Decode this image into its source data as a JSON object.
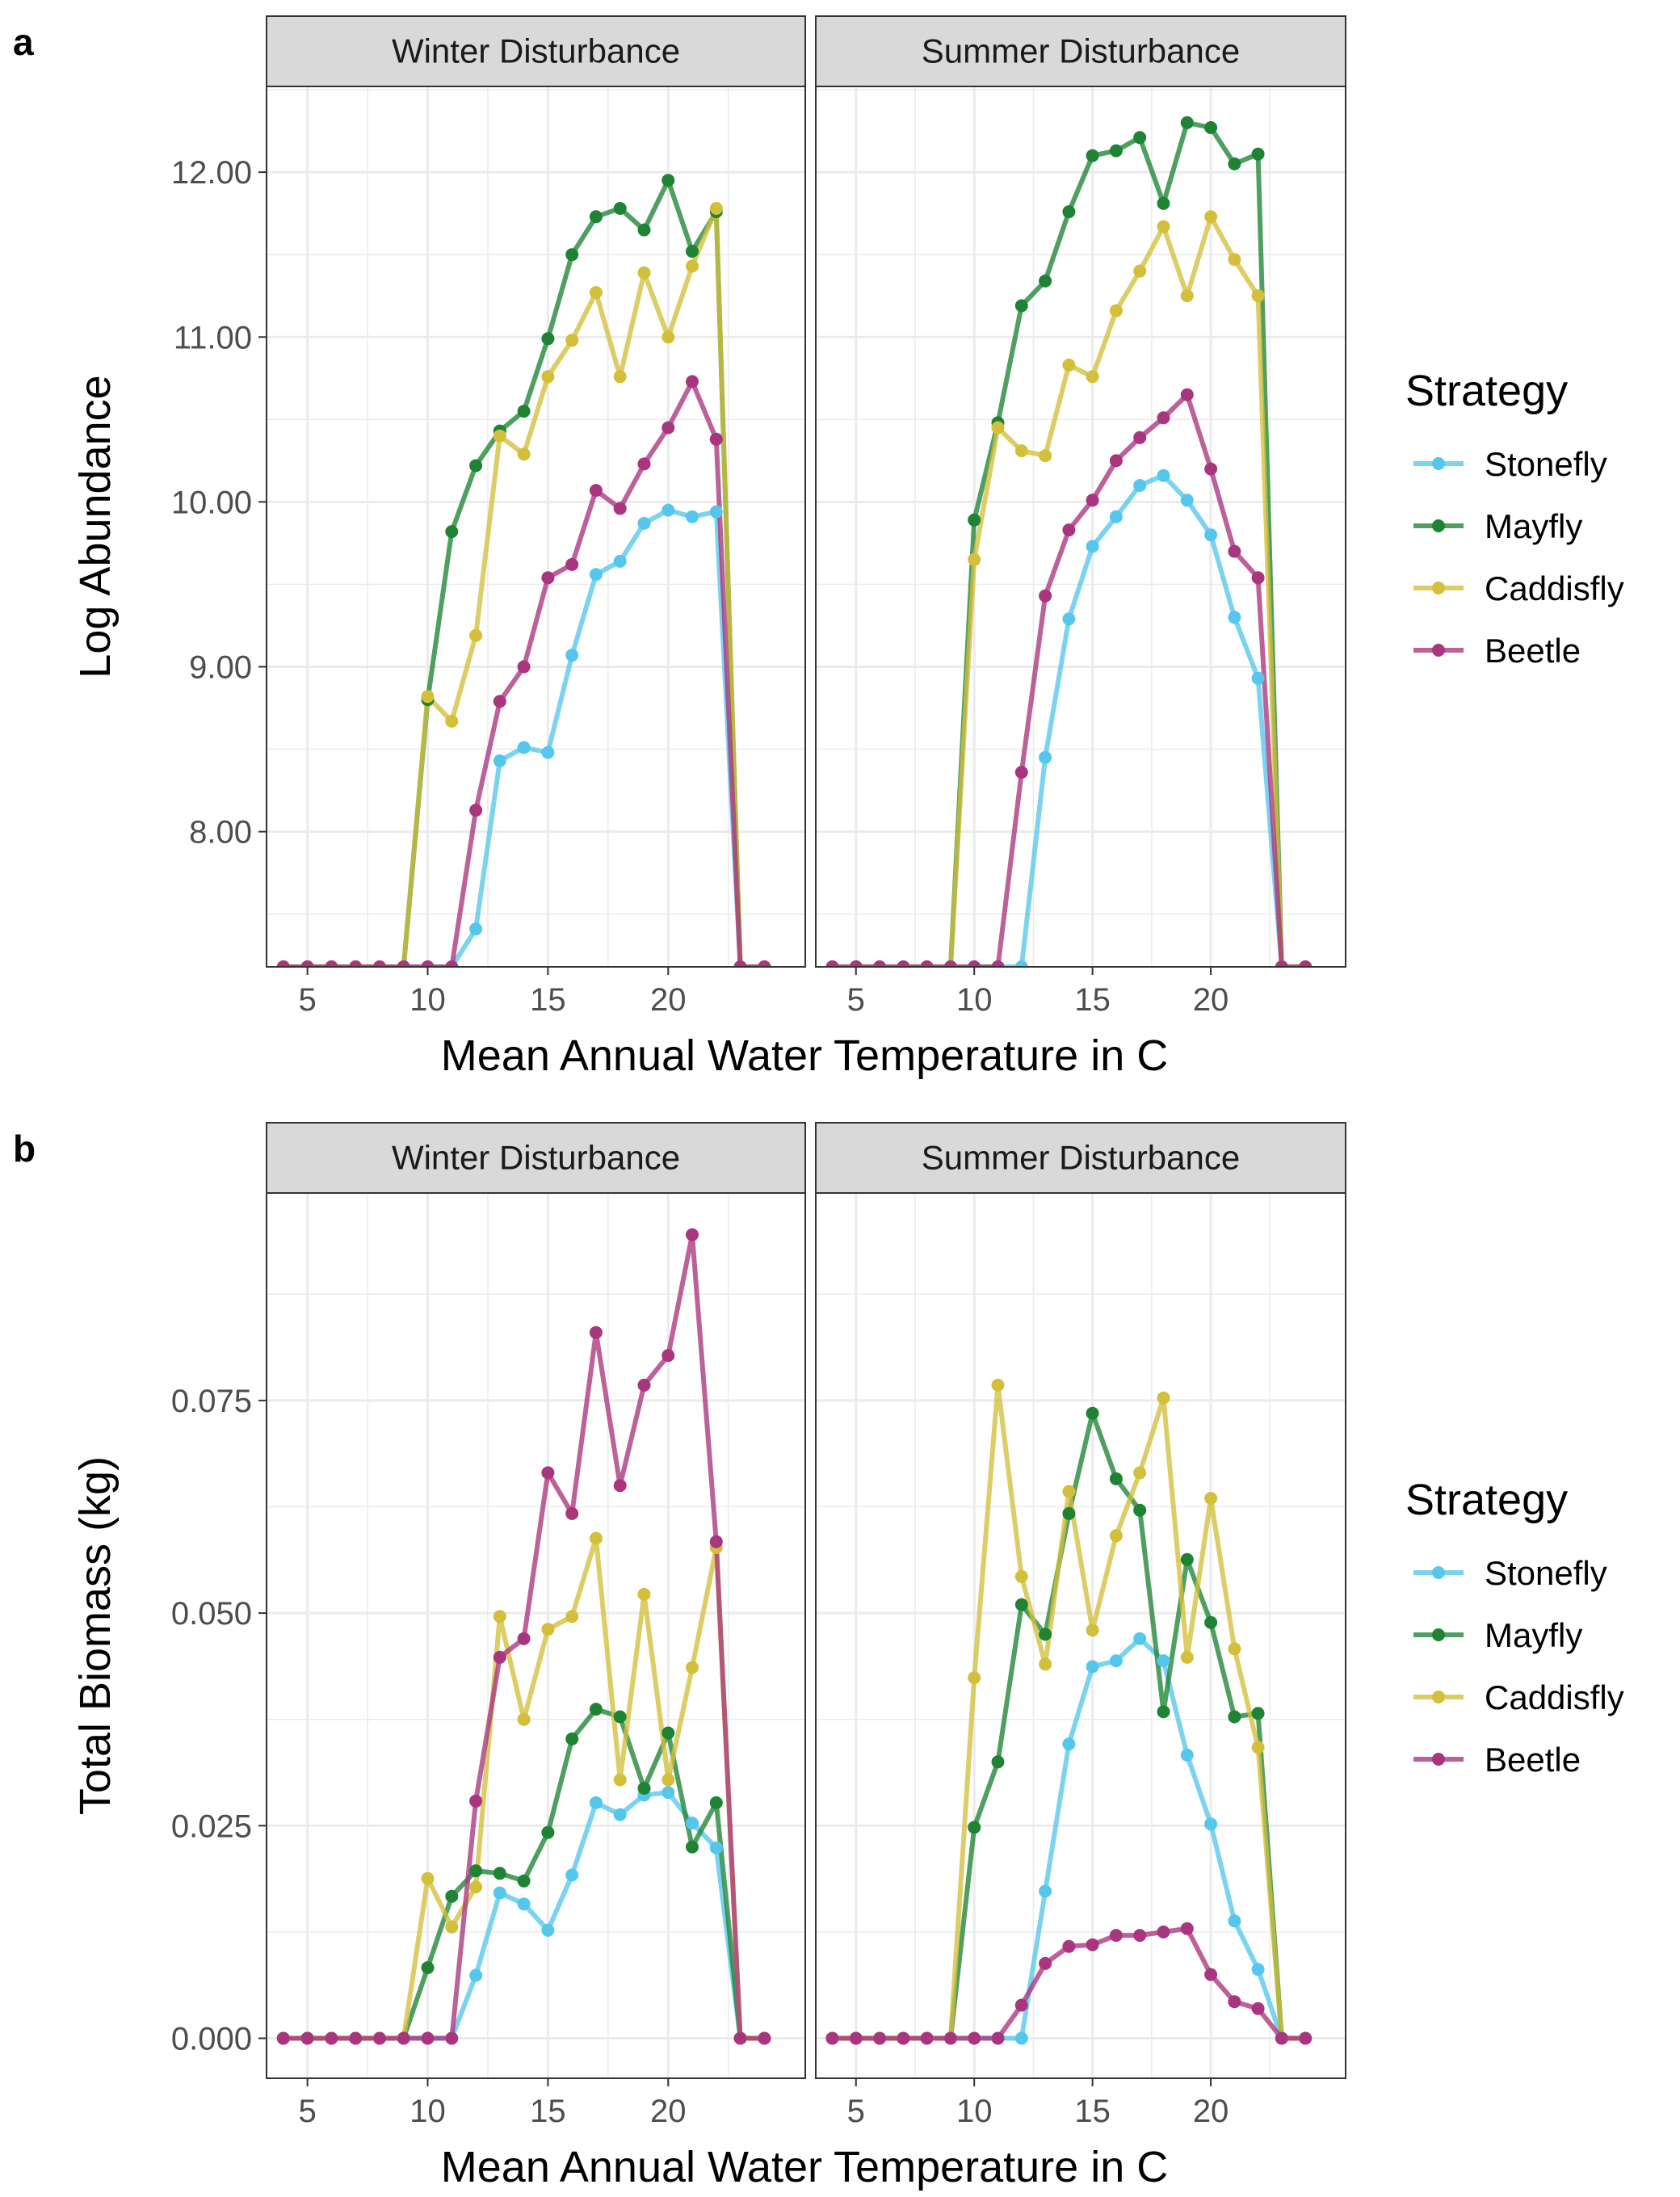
{
  "colors": {
    "Stonefly": "#56C7EC",
    "Mayfly": "#1E8434",
    "Caddisfly": "#D4BF3B",
    "Beetle": "#A9357E",
    "grid": "#EBEBEB",
    "strip_fill": "#D9D9D9"
  },
  "chart_data": [
    {
      "type": "line",
      "panel_label": "a",
      "facets": [
        "Winter Disturbance",
        "Summer Disturbance"
      ],
      "xlabel": "Mean Annual Water Temperature in C",
      "ylabel": "Log Abundance",
      "x_ticks": [
        5,
        10,
        15,
        20
      ],
      "y_ticks": [
        8,
        9,
        10,
        11,
        12
      ],
      "y_tick_labels": [
        "8.00",
        "9.00",
        "10.00",
        "11.00",
        "12.00"
      ],
      "xlim": [
        3.3,
        25.7
      ],
      "ylim": [
        7.18,
        12.52
      ],
      "legend": {
        "title": "Strategy",
        "position": "right",
        "entries": [
          "Stonefly",
          "Mayfly",
          "Caddisfly",
          "Beetle"
        ]
      },
      "x": [
        4,
        5,
        6,
        7,
        8,
        9,
        10,
        11,
        12,
        13,
        14,
        15,
        16,
        17,
        18,
        19,
        20,
        21,
        22,
        23,
        24
      ],
      "panels": [
        {
          "facet": "Winter Disturbance",
          "series": [
            {
              "name": "Stonefly",
              "values": [
                7.18,
                7.18,
                7.18,
                7.18,
                7.18,
                7.18,
                7.18,
                7.18,
                7.41,
                8.43,
                8.51,
                8.48,
                9.07,
                9.56,
                9.64,
                9.87,
                9.95,
                9.91,
                9.94,
                7.18,
                7.18
              ]
            },
            {
              "name": "Mayfly",
              "values": [
                7.18,
                7.18,
                7.18,
                7.18,
                7.18,
                7.18,
                8.8,
                9.82,
                10.22,
                10.43,
                10.55,
                10.99,
                11.5,
                11.73,
                11.78,
                11.65,
                11.95,
                11.52,
                11.76,
                7.18,
                7.18
              ]
            },
            {
              "name": "Caddisfly",
              "values": [
                7.18,
                7.18,
                7.18,
                7.18,
                7.18,
                7.18,
                8.82,
                8.67,
                9.19,
                10.4,
                10.29,
                10.76,
                10.98,
                11.27,
                10.76,
                11.39,
                11.0,
                11.43,
                11.78,
                7.18,
                7.18
              ]
            },
            {
              "name": "Beetle",
              "values": [
                7.18,
                7.18,
                7.18,
                7.18,
                7.18,
                7.18,
                7.18,
                7.18,
                8.13,
                8.79,
                9.0,
                9.54,
                9.62,
                10.07,
                9.96,
                10.23,
                10.45,
                10.73,
                10.38,
                7.18,
                7.18
              ]
            }
          ]
        },
        {
          "facet": "Summer Disturbance",
          "series": [
            {
              "name": "Stonefly",
              "values": [
                7.18,
                7.18,
                7.18,
                7.18,
                7.18,
                7.18,
                7.18,
                7.18,
                7.18,
                8.45,
                9.29,
                9.73,
                9.91,
                10.1,
                10.16,
                10.01,
                9.8,
                9.3,
                8.93,
                7.18,
                7.18
              ]
            },
            {
              "name": "Mayfly",
              "values": [
                7.18,
                7.18,
                7.18,
                7.18,
                7.18,
                7.18,
                9.89,
                10.48,
                11.19,
                11.34,
                11.76,
                12.1,
                12.13,
                12.21,
                11.81,
                12.3,
                12.27,
                12.05,
                12.11,
                7.18,
                7.18
              ]
            },
            {
              "name": "Caddisfly",
              "values": [
                7.18,
                7.18,
                7.18,
                7.18,
                7.18,
                7.18,
                9.65,
                10.45,
                10.31,
                10.28,
                10.83,
                10.76,
                11.16,
                11.4,
                11.67,
                11.25,
                11.73,
                11.47,
                11.25,
                7.18,
                7.18
              ]
            },
            {
              "name": "Beetle",
              "values": [
                7.18,
                7.18,
                7.18,
                7.18,
                7.18,
                7.18,
                7.18,
                7.18,
                8.36,
                9.43,
                9.83,
                10.01,
                10.25,
                10.39,
                10.51,
                10.65,
                10.2,
                9.7,
                9.54,
                7.18,
                7.18
              ]
            }
          ]
        }
      ]
    },
    {
      "type": "line",
      "panel_label": "b",
      "facets": [
        "Winter Disturbance",
        "Summer Disturbance"
      ],
      "xlabel": "Mean Annual Water Temperature in C",
      "ylabel": "Total Biomass (kg)",
      "x_ticks": [
        5,
        10,
        15,
        20
      ],
      "y_ticks": [
        0,
        0.025,
        0.05,
        0.075
      ],
      "y_tick_labels": [
        "0.000",
        "0.025",
        "0.050",
        "0.075"
      ],
      "xlim": [
        3.3,
        25.7
      ],
      "ylim": [
        -0.0047,
        0.0994
      ],
      "legend": {
        "title": "Strategy",
        "position": "right",
        "entries": [
          "Stonefly",
          "Mayfly",
          "Caddisfly",
          "Beetle"
        ]
      },
      "x": [
        4,
        5,
        6,
        7,
        8,
        9,
        10,
        11,
        12,
        13,
        14,
        15,
        16,
        17,
        18,
        19,
        20,
        21,
        22,
        23,
        24
      ],
      "panels": [
        {
          "facet": "Winter Disturbance",
          "series": [
            {
              "name": "Stonefly",
              "values": [
                0,
                0,
                0,
                0,
                0,
                0,
                0,
                0,
                0.0074,
                0.0171,
                0.0158,
                0.0127,
                0.0192,
                0.0277,
                0.0263,
                0.0286,
                0.0289,
                0.0253,
                0.0224,
                0,
                0
              ]
            },
            {
              "name": "Mayfly",
              "values": [
                0,
                0,
                0,
                0,
                0,
                0,
                0.0083,
                0.0167,
                0.0197,
                0.0194,
                0.0185,
                0.0242,
                0.0352,
                0.0387,
                0.0378,
                0.0294,
                0.0359,
                0.0225,
                0.0277,
                0,
                0
              ]
            },
            {
              "name": "Caddisfly",
              "values": [
                0,
                0,
                0,
                0,
                0,
                0,
                0.0188,
                0.0131,
                0.0178,
                0.0496,
                0.0375,
                0.0481,
                0.0496,
                0.0588,
                0.0304,
                0.0522,
                0.0304,
                0.0436,
                0.0577,
                0,
                0
              ]
            },
            {
              "name": "Beetle",
              "values": [
                0,
                0,
                0,
                0,
                0,
                0,
                0,
                0,
                0.0279,
                0.0448,
                0.047,
                0.0665,
                0.0617,
                0.083,
                0.065,
                0.0768,
                0.0803,
                0.0945,
                0.0584,
                0,
                0
              ]
            }
          ]
        },
        {
          "facet": "Summer Disturbance",
          "series": [
            {
              "name": "Stonefly",
              "values": [
                0,
                0,
                0,
                0,
                0,
                0,
                0,
                0,
                0,
                0.0173,
                0.0346,
                0.0437,
                0.0444,
                0.047,
                0.0444,
                0.0333,
                0.0252,
                0.0138,
                0.0081,
                0,
                0
              ]
            },
            {
              "name": "Mayfly",
              "values": [
                0,
                0,
                0,
                0,
                0,
                0,
                0.0248,
                0.0325,
                0.051,
                0.0475,
                0.0617,
                0.0735,
                0.0658,
                0.0621,
                0.0384,
                0.0563,
                0.0489,
                0.0378,
                0.0382,
                0,
                0
              ]
            },
            {
              "name": "Caddisfly",
              "values": [
                0,
                0,
                0,
                0,
                0,
                0,
                0.0424,
                0.0768,
                0.0543,
                0.044,
                0.0643,
                0.048,
                0.0591,
                0.0665,
                0.0753,
                0.0448,
                0.0635,
                0.0458,
                0.0342,
                0,
                0
              ]
            },
            {
              "name": "Beetle",
              "values": [
                0,
                0,
                0,
                0,
                0,
                0,
                0,
                0,
                0.0039,
                0.0088,
                0.0108,
                0.011,
                0.0121,
                0.0121,
                0.0125,
                0.0129,
                0.0075,
                0.0043,
                0.0035,
                0,
                0
              ]
            }
          ]
        }
      ]
    }
  ]
}
